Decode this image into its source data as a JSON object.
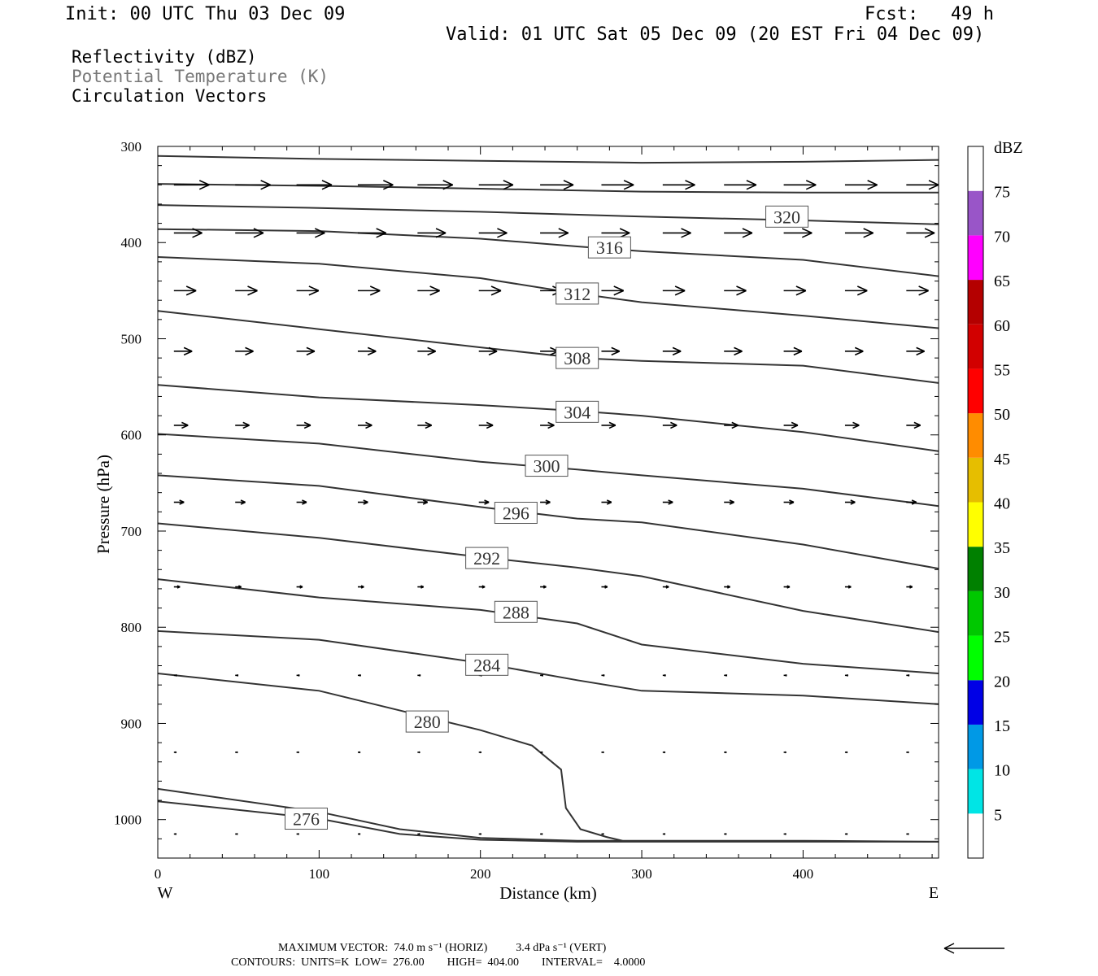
{
  "header": {
    "init": "Init: 00 UTC Thu 03 Dec 09",
    "fcst": "Fcst:   49 h",
    "valid": "Valid: 01 UTC Sat 05 Dec 09 (20 EST Fri 04 Dec 09)"
  },
  "titles": {
    "line1": "Reflectivity (dBZ)",
    "line2": "Potential Temperature (K)",
    "line3": "Circulation Vectors"
  },
  "footer": {
    "max_vector": "MAXIMUM VECTOR:  74.0 m s⁻¹ (HORIZ)          3.4 dPa s⁻¹ (VERT)",
    "contours": "CONTOURS:  UNITS=K  LOW=  276.00        HIGH=  404.00        INTERVAL=    4.0000"
  },
  "chart_data": {
    "type": "line",
    "title": "Potential Temperature (K)",
    "xlabel": "Distance (km)",
    "ylabel": "Pressure (hPa)",
    "xlim": [
      0,
      484
    ],
    "ylim": [
      300,
      1040
    ],
    "y_inverted": true,
    "x_ticks": [
      0,
      100,
      200,
      300,
      400
    ],
    "y_ticks": [
      300,
      400,
      500,
      600,
      700,
      800,
      900,
      1000
    ],
    "x_end_labels": {
      "left": "W",
      "right": "E"
    },
    "contour_interval": 4,
    "contours": [
      {
        "label": "",
        "points": [
          [
            0,
            310
          ],
          [
            100,
            313
          ],
          [
            200,
            315
          ],
          [
            300,
            317
          ],
          [
            400,
            316
          ],
          [
            484,
            314
          ]
        ]
      },
      {
        "label": "",
        "points": [
          [
            0,
            339
          ],
          [
            100,
            341
          ],
          [
            200,
            344
          ],
          [
            300,
            347
          ],
          [
            400,
            348
          ],
          [
            484,
            348
          ]
        ]
      },
      {
        "label": "320",
        "points": [
          [
            0,
            361
          ],
          [
            100,
            364
          ],
          [
            200,
            368
          ],
          [
            300,
            373
          ],
          [
            400,
            377
          ],
          [
            484,
            381
          ]
        ]
      },
      {
        "label": "316",
        "points": [
          [
            0,
            386
          ],
          [
            100,
            388
          ],
          [
            200,
            396
          ],
          [
            260,
            404
          ],
          [
            300,
            409
          ],
          [
            400,
            418
          ],
          [
            484,
            435
          ]
        ]
      },
      {
        "label": "312",
        "points": [
          [
            0,
            415
          ],
          [
            100,
            422
          ],
          [
            200,
            437
          ],
          [
            260,
            453
          ],
          [
            300,
            462
          ],
          [
            400,
            476
          ],
          [
            484,
            489
          ]
        ]
      },
      {
        "label": "308",
        "points": [
          [
            0,
            471
          ],
          [
            100,
            490
          ],
          [
            200,
            509
          ],
          [
            260,
            520
          ],
          [
            300,
            523
          ],
          [
            400,
            528
          ],
          [
            484,
            546
          ]
        ]
      },
      {
        "label": "304",
        "points": [
          [
            0,
            548
          ],
          [
            100,
            561
          ],
          [
            200,
            569
          ],
          [
            260,
            575
          ],
          [
            300,
            580
          ],
          [
            400,
            597
          ],
          [
            484,
            617
          ]
        ]
      },
      {
        "label": "300",
        "points": [
          [
            0,
            599
          ],
          [
            100,
            609
          ],
          [
            200,
            628
          ],
          [
            260,
            636
          ],
          [
            300,
            642
          ],
          [
            400,
            656
          ],
          [
            484,
            674
          ]
        ]
      },
      {
        "label": "296",
        "points": [
          [
            0,
            642
          ],
          [
            100,
            653
          ],
          [
            200,
            675
          ],
          [
            260,
            687
          ],
          [
            300,
            691
          ],
          [
            400,
            714
          ],
          [
            484,
            739
          ]
        ]
      },
      {
        "label": "292",
        "points": [
          [
            0,
            692
          ],
          [
            100,
            707
          ],
          [
            200,
            727
          ],
          [
            260,
            738
          ],
          [
            300,
            747
          ],
          [
            400,
            783
          ],
          [
            484,
            805
          ]
        ]
      },
      {
        "label": "288",
        "points": [
          [
            0,
            750
          ],
          [
            100,
            769
          ],
          [
            200,
            782
          ],
          [
            260,
            796
          ],
          [
            300,
            818
          ],
          [
            400,
            838
          ],
          [
            484,
            848
          ]
        ]
      },
      {
        "label": "284",
        "points": [
          [
            0,
            804
          ],
          [
            100,
            813
          ],
          [
            200,
            837
          ],
          [
            260,
            855
          ],
          [
            300,
            866
          ],
          [
            400,
            871
          ],
          [
            484,
            880
          ]
        ]
      },
      {
        "label": "280",
        "points": [
          [
            0,
            848
          ],
          [
            100,
            866
          ],
          [
            200,
            907
          ],
          [
            232,
            923
          ],
          [
            250,
            948
          ],
          [
            253,
            988
          ],
          [
            262,
            1010
          ],
          [
            278,
            1018
          ],
          [
            288,
            1022
          ]
        ]
      },
      {
        "label": "276",
        "points": [
          [
            0,
            968
          ],
          [
            100,
            992
          ],
          [
            150,
            1010
          ],
          [
            200,
            1019
          ],
          [
            260,
            1022
          ],
          [
            400,
            1022
          ],
          [
            484,
            1023
          ]
        ]
      },
      {
        "label": "",
        "points": [
          [
            0,
            981
          ],
          [
            100,
            999
          ],
          [
            150,
            1015
          ],
          [
            200,
            1021
          ],
          [
            260,
            1023
          ],
          [
            484,
            1023
          ]
        ]
      }
    ],
    "vector_rows": [
      {
        "pressure": 340,
        "u": [
          70,
          70,
          70,
          70,
          70,
          68,
          66,
          64,
          64,
          64,
          64,
          64,
          64
        ]
      },
      {
        "pressure": 390,
        "u": [
          56,
          56,
          56,
          56,
          56,
          56,
          56,
          56,
          56,
          56,
          56,
          56,
          56
        ]
      },
      {
        "pressure": 450,
        "u": [
          44,
          44,
          44,
          44,
          44,
          44,
          44,
          44,
          44,
          44,
          44,
          44,
          44
        ]
      },
      {
        "pressure": 513,
        "u": [
          36,
          36,
          36,
          36,
          36,
          36,
          36,
          36,
          36,
          36,
          36,
          36,
          36
        ]
      },
      {
        "pressure": 590,
        "u": [
          28,
          28,
          28,
          28,
          28,
          28,
          28,
          28,
          28,
          28,
          28,
          28,
          28
        ]
      },
      {
        "pressure": 670,
        "u": [
          20,
          20,
          20,
          20,
          20,
          20,
          20,
          20,
          20,
          20,
          20,
          20,
          20
        ]
      },
      {
        "pressure": 758,
        "u": [
          12,
          12,
          12,
          12,
          12,
          12,
          12,
          12,
          12,
          12,
          12,
          12,
          12
        ]
      },
      {
        "pressure": 850,
        "u": [
          6,
          6,
          6,
          6,
          6,
          6,
          6,
          6,
          6,
          6,
          6,
          6,
          6
        ]
      },
      {
        "pressure": 930,
        "u": [
          4,
          4,
          4,
          4,
          4,
          4,
          4,
          4,
          4,
          4,
          4,
          4,
          4
        ]
      },
      {
        "pressure": 1015,
        "u": [
          2,
          2,
          2,
          2,
          2,
          2,
          2,
          2,
          2,
          2,
          2,
          2,
          2
        ]
      }
    ],
    "vector_x": [
      10,
      48,
      86,
      124,
      161,
      199,
      237,
      275,
      313,
      351,
      388,
      426,
      464
    ],
    "colorbar": {
      "label": "dBZ",
      "levels": [
        "5",
        "10",
        "15",
        "20",
        "25",
        "30",
        "35",
        "40",
        "45",
        "50",
        "55",
        "60",
        "65",
        "70",
        "75"
      ],
      "colors": [
        "#ffffff",
        "#00e5e5",
        "#0099e6",
        "#0000e6",
        "#00ff00",
        "#00c800",
        "#008000",
        "#ffff00",
        "#e6be00",
        "#ff8c00",
        "#ff0000",
        "#d20000",
        "#b40000",
        "#ff00ff",
        "#9955c8",
        "#ffffff"
      ]
    }
  }
}
